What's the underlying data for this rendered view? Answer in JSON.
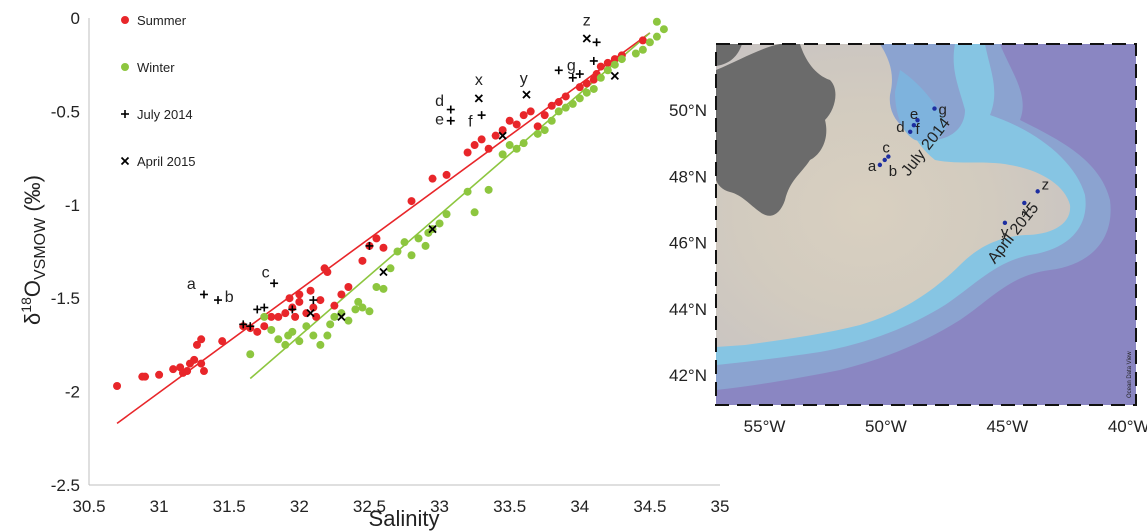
{
  "chart_data": [
    {
      "type": "scatter",
      "xlabel": "Salinity",
      "ylabel_main": "δ",
      "ylabel_sup": "18",
      "ylabel_rest": "O",
      "ylabel_sub": "VSMOW",
      "ylabel_unit": " (‰)",
      "xlim": [
        30.5,
        35
      ],
      "ylim": [
        -2.5,
        0
      ],
      "x_ticks": [
        30.5,
        31,
        31.5,
        32,
        32.5,
        33,
        33.5,
        34,
        34.5,
        35
      ],
      "x_tick_labels": [
        "30.5",
        "31",
        "31.5",
        "32",
        "32.5",
        "33",
        "33.5",
        "34",
        "34.5",
        "35"
      ],
      "y_ticks": [
        0,
        -0.5,
        -1,
        -1.5,
        -2,
        -2.5
      ],
      "y_tick_labels": [
        "0",
        "-0.5",
        "-1",
        "-1.5",
        "-2",
        "-2.5"
      ],
      "legend_position": "top-left",
      "legend": [
        {
          "label": "Summer",
          "marker": "dot",
          "color": "#e8262a"
        },
        {
          "label": "Winter",
          "marker": "dot",
          "color": "#8dc63f"
        },
        {
          "label": "July 2014",
          "marker": "plus",
          "color": "#000000"
        },
        {
          "label": "April 2015",
          "marker": "cross",
          "color": "#000000"
        }
      ],
      "series": [
        {
          "name": "Summer",
          "color": "#e8262a",
          "fit_line": {
            "x": [
              30.7,
              34.5
            ],
            "y": [
              -2.17,
              -0.08
            ]
          },
          "points": [
            [
              30.7,
              -1.97
            ],
            [
              30.88,
              -1.92
            ],
            [
              30.9,
              -1.92
            ],
            [
              31.0,
              -1.91
            ],
            [
              31.1,
              -1.88
            ],
            [
              31.15,
              -1.87
            ],
            [
              31.17,
              -1.9
            ],
            [
              31.2,
              -1.89
            ],
            [
              31.22,
              -1.85
            ],
            [
              31.25,
              -1.83
            ],
            [
              31.3,
              -1.85
            ],
            [
              31.27,
              -1.75
            ],
            [
              31.3,
              -1.72
            ],
            [
              31.32,
              -1.89
            ],
            [
              31.45,
              -1.73
            ],
            [
              31.6,
              -1.65
            ],
            [
              31.65,
              -1.66
            ],
            [
              31.7,
              -1.68
            ],
            [
              31.75,
              -1.65
            ],
            [
              31.8,
              -1.6
            ],
            [
              31.85,
              -1.6
            ],
            [
              31.9,
              -1.58
            ],
            [
              31.93,
              -1.5
            ],
            [
              31.95,
              -1.55
            ],
            [
              31.97,
              -1.6
            ],
            [
              32.0,
              -1.52
            ],
            [
              32.0,
              -1.48
            ],
            [
              32.05,
              -1.58
            ],
            [
              32.08,
              -1.46
            ],
            [
              32.1,
              -1.55
            ],
            [
              32.12,
              -1.6
            ],
            [
              32.15,
              -1.51
            ],
            [
              32.18,
              -1.34
            ],
            [
              32.2,
              -1.36
            ],
            [
              32.25,
              -1.54
            ],
            [
              32.3,
              -1.48
            ],
            [
              32.35,
              -1.44
            ],
            [
              32.45,
              -1.3
            ],
            [
              32.5,
              -1.22
            ],
            [
              32.55,
              -1.18
            ],
            [
              32.6,
              -1.23
            ],
            [
              32.8,
              -0.98
            ],
            [
              32.95,
              -0.86
            ],
            [
              33.05,
              -0.84
            ],
            [
              33.2,
              -0.72
            ],
            [
              33.25,
              -0.68
            ],
            [
              33.3,
              -0.65
            ],
            [
              33.35,
              -0.7
            ],
            [
              33.4,
              -0.63
            ],
            [
              33.45,
              -0.6
            ],
            [
              33.5,
              -0.55
            ],
            [
              33.55,
              -0.57
            ],
            [
              33.6,
              -0.52
            ],
            [
              33.65,
              -0.5
            ],
            [
              33.7,
              -0.58
            ],
            [
              33.75,
              -0.52
            ],
            [
              33.8,
              -0.47
            ],
            [
              33.85,
              -0.45
            ],
            [
              33.9,
              -0.42
            ],
            [
              34.0,
              -0.37
            ],
            [
              34.05,
              -0.35
            ],
            [
              34.1,
              -0.33
            ],
            [
              34.12,
              -0.3
            ],
            [
              34.15,
              -0.26
            ],
            [
              34.2,
              -0.24
            ],
            [
              34.25,
              -0.22
            ],
            [
              34.3,
              -0.2
            ],
            [
              34.45,
              -0.12
            ]
          ]
        },
        {
          "name": "Winter",
          "color": "#8dc63f",
          "fit_line": {
            "x": [
              31.65,
              34.5
            ],
            "y": [
              -1.93,
              -0.08
            ]
          },
          "points": [
            [
              31.65,
              -1.8
            ],
            [
              31.75,
              -1.6
            ],
            [
              31.8,
              -1.67
            ],
            [
              31.85,
              -1.72
            ],
            [
              31.9,
              -1.75
            ],
            [
              31.92,
              -1.7
            ],
            [
              31.95,
              -1.68
            ],
            [
              32.0,
              -1.73
            ],
            [
              32.05,
              -1.65
            ],
            [
              32.1,
              -1.7
            ],
            [
              32.15,
              -1.75
            ],
            [
              32.2,
              -1.7
            ],
            [
              32.22,
              -1.64
            ],
            [
              32.25,
              -1.6
            ],
            [
              32.3,
              -1.58
            ],
            [
              32.35,
              -1.62
            ],
            [
              32.4,
              -1.56
            ],
            [
              32.42,
              -1.52
            ],
            [
              32.45,
              -1.55
            ],
            [
              32.5,
              -1.57
            ],
            [
              32.55,
              -1.44
            ],
            [
              32.6,
              -1.45
            ],
            [
              32.65,
              -1.34
            ],
            [
              32.7,
              -1.25
            ],
            [
              32.75,
              -1.2
            ],
            [
              32.8,
              -1.27
            ],
            [
              32.85,
              -1.18
            ],
            [
              32.9,
              -1.22
            ],
            [
              32.92,
              -1.15
            ],
            [
              32.95,
              -1.13
            ],
            [
              33.0,
              -1.1
            ],
            [
              33.05,
              -1.05
            ],
            [
              33.2,
              -0.93
            ],
            [
              33.25,
              -1.04
            ],
            [
              33.35,
              -0.92
            ],
            [
              33.45,
              -0.73
            ],
            [
              33.5,
              -0.68
            ],
            [
              33.55,
              -0.7
            ],
            [
              33.6,
              -0.67
            ],
            [
              33.7,
              -0.62
            ],
            [
              33.75,
              -0.6
            ],
            [
              33.8,
              -0.55
            ],
            [
              33.85,
              -0.5
            ],
            [
              33.9,
              -0.48
            ],
            [
              33.95,
              -0.46
            ],
            [
              34.0,
              -0.43
            ],
            [
              34.05,
              -0.4
            ],
            [
              34.1,
              -0.38
            ],
            [
              34.15,
              -0.32
            ],
            [
              34.2,
              -0.28
            ],
            [
              34.25,
              -0.25
            ],
            [
              34.3,
              -0.22
            ],
            [
              34.4,
              -0.19
            ],
            [
              34.45,
              -0.17
            ],
            [
              34.5,
              -0.13
            ],
            [
              34.55,
              -0.1
            ],
            [
              34.6,
              -0.06
            ],
            [
              34.55,
              -0.02
            ]
          ]
        },
        {
          "name": "July 2014",
          "marker": "plus",
          "points": [
            [
              31.32,
              -1.48
            ],
            [
              31.42,
              -1.51
            ],
            [
              31.6,
              -1.64
            ],
            [
              31.65,
              -1.65
            ],
            [
              31.7,
              -1.56
            ],
            [
              31.75,
              -1.55
            ],
            [
              31.82,
              -1.42
            ],
            [
              31.95,
              -1.56
            ],
            [
              32.1,
              -1.51
            ],
            [
              32.5,
              -1.22
            ],
            [
              33.08,
              -0.49
            ],
            [
              33.08,
              -0.55
            ],
            [
              33.3,
              -0.52
            ],
            [
              33.85,
              -0.28
            ],
            [
              33.95,
              -0.32
            ],
            [
              34.1,
              -0.23
            ],
            [
              34.12,
              -0.13
            ],
            [
              34.0,
              -0.3
            ]
          ]
        },
        {
          "name": "April 2015",
          "marker": "cross",
          "points": [
            [
              32.08,
              -1.58
            ],
            [
              32.3,
              -1.6
            ],
            [
              32.6,
              -1.36
            ],
            [
              32.95,
              -1.13
            ],
            [
              33.28,
              -0.43
            ],
            [
              33.45,
              -0.63
            ],
            [
              33.62,
              -0.41
            ],
            [
              34.05,
              -0.11
            ],
            [
              34.25,
              -0.31
            ]
          ]
        }
      ],
      "annotations": [
        {
          "text": "a",
          "x": 31.23,
          "y": -1.45
        },
        {
          "text": "b",
          "x": 31.5,
          "y": -1.52
        },
        {
          "text": "c",
          "x": 31.76,
          "y": -1.39
        },
        {
          "text": "d",
          "x": 33.0,
          "y": -0.47
        },
        {
          "text": "e",
          "x": 33.0,
          "y": -0.57
        },
        {
          "text": "f",
          "x": 33.22,
          "y": -0.58
        },
        {
          "text": "x",
          "x": 33.28,
          "y": -0.36
        },
        {
          "text": "y",
          "x": 33.6,
          "y": -0.35
        },
        {
          "text": "g",
          "x": 33.94,
          "y": -0.28
        },
        {
          "text": "z",
          "x": 34.05,
          "y": -0.04
        }
      ]
    },
    {
      "type": "map",
      "x_tick_labels": [
        "55°W",
        "50°W",
        "45°W",
        "40°W"
      ],
      "x_ticks": [
        -55,
        -50,
        -45,
        -40
      ],
      "y_tick_labels": [
        "50°N",
        "48°N",
        "46°N",
        "44°N",
        "42°N"
      ],
      "y_ticks": [
        50,
        48,
        46,
        44,
        42
      ],
      "lon_range": [
        -57,
        -39.7
      ],
      "lat_range": [
        41.1,
        52
      ],
      "credit": "Ocean Data View",
      "station_groups": [
        {
          "label": "July 2014",
          "label_lon": -48.2,
          "label_lat": 48.8,
          "stations": [
            {
              "id": "a",
              "lon": -50.25,
              "lat": 48.35
            },
            {
              "id": "b",
              "lon": -50.05,
              "lat": 48.5
            },
            {
              "id": "c",
              "lon": -49.9,
              "lat": 48.6
            },
            {
              "id": "d",
              "lon": -49.0,
              "lat": 49.35
            },
            {
              "id": "e",
              "lon": -48.85,
              "lat": 49.55
            },
            {
              "id": "f",
              "lon": -48.7,
              "lat": 49.7
            },
            {
              "id": "g",
              "lon": -48.0,
              "lat": 50.05
            }
          ]
        },
        {
          "label": "April 2015",
          "label_lon": -44.6,
          "label_lat": 46.2,
          "stations": [
            {
              "id": "y",
              "lon": -45.1,
              "lat": 46.6
            },
            {
              "id": "x",
              "lon": -44.3,
              "lat": 47.2
            },
            {
              "id": "z",
              "lon": -43.75,
              "lat": 47.55
            }
          ]
        }
      ],
      "colors": {
        "deep_ocean": "#8a86c2",
        "mid_ocean": "#8ba3d0",
        "slope": "#88c7e4",
        "shelf": "#d8d2c4",
        "land": "#6d6d6d",
        "station": "#1d2ea0"
      }
    }
  ]
}
